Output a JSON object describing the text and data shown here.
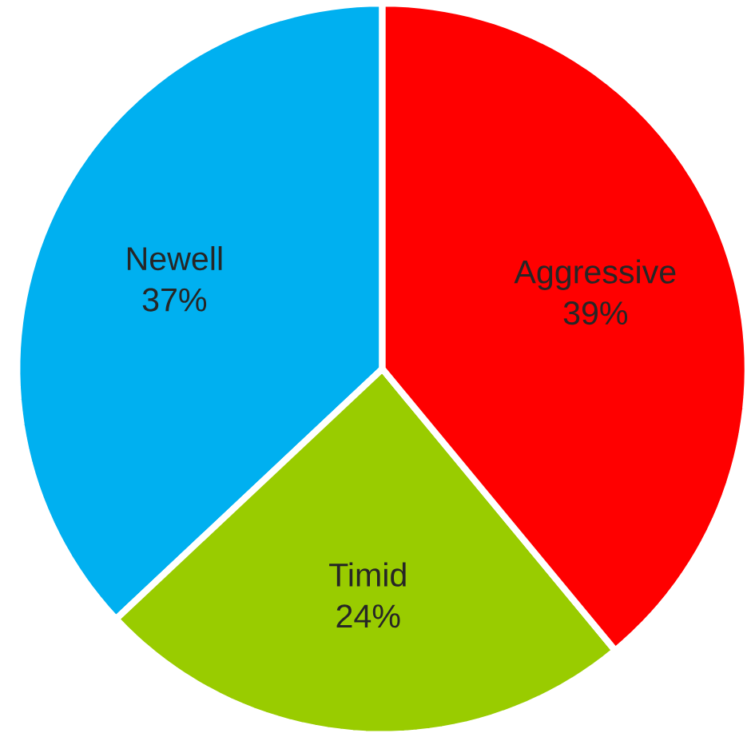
{
  "chart_data": {
    "type": "pie",
    "categories": [
      "Aggressive",
      "Timid",
      "Newell"
    ],
    "values": [
      39,
      24,
      37
    ],
    "colors": [
      "#ff0000",
      "#99cc00",
      "#00b0f0"
    ],
    "value_labels": [
      "39%",
      "24%",
      "37%"
    ]
  }
}
